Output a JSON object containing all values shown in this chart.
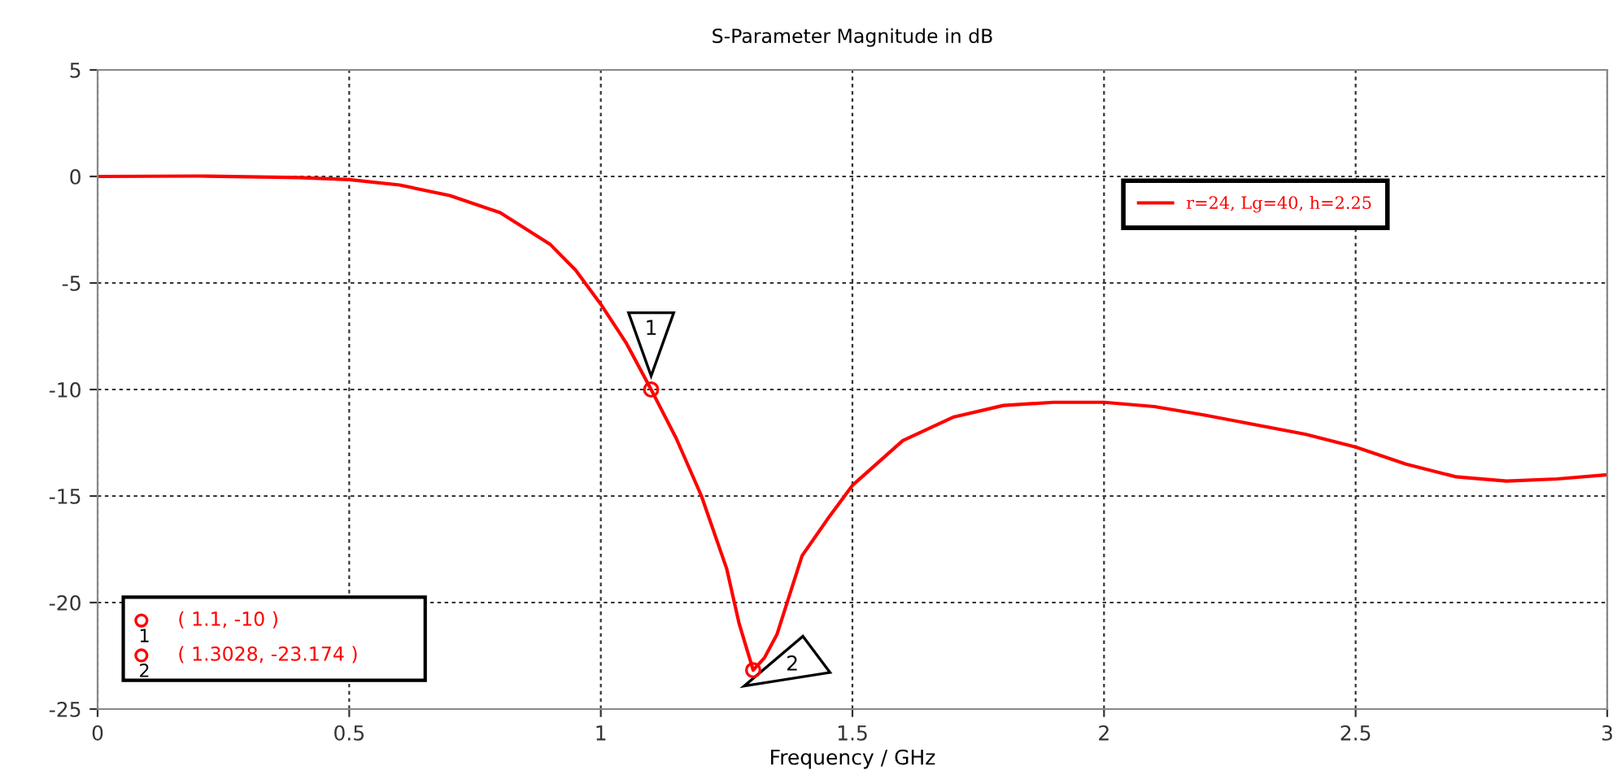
{
  "chart_data": {
    "type": "line",
    "title": "S-Parameter Magnitude in dB",
    "xlabel": "Frequency / GHz",
    "x": [
      0,
      0.2,
      0.4,
      0.5,
      0.6,
      0.7,
      0.8,
      0.9,
      0.95,
      1.0,
      1.05,
      1.1,
      1.15,
      1.2,
      1.25,
      1.275,
      1.3028,
      1.325,
      1.35,
      1.4,
      1.45,
      1.5,
      1.6,
      1.7,
      1.8,
      1.9,
      2.0,
      2.1,
      2.2,
      2.3,
      2.4,
      2.5,
      2.6,
      2.7,
      2.8,
      2.9,
      3.0
    ],
    "series": [
      {
        "name": "r=24, Lg=40, h=2.25",
        "color": "#ff0000",
        "values": [
          0,
          0.02,
          -0.05,
          -0.15,
          -0.4,
          -0.9,
          -1.7,
          -3.2,
          -4.4,
          -6.0,
          -7.8,
          -10,
          -12.3,
          -15.0,
          -18.4,
          -21.0,
          -23.174,
          -22.6,
          -21.5,
          -17.8,
          -16.1,
          -14.5,
          -12.4,
          -11.3,
          -10.75,
          -10.6,
          -10.6,
          -10.8,
          -11.2,
          -11.65,
          -12.1,
          -12.7,
          -13.5,
          -14.1,
          -14.3,
          -14.2,
          -14.0
        ]
      }
    ],
    "annotations": [
      {
        "text": "1",
        "x": 1.1,
        "y": -10
      },
      {
        "text": "2",
        "x": 1.3028,
        "y": -23.174
      },
      "( 1.1, -10 )",
      "( 1.3028, -23.174 )"
    ],
    "xlim": [
      0,
      3
    ],
    "ylim": [
      -25,
      5
    ],
    "xticks": [
      0,
      0.5,
      1,
      1.5,
      2,
      2.5,
      3
    ],
    "yticks": [
      -25,
      -20,
      -15,
      -10,
      -5,
      0,
      5
    ],
    "grid": true,
    "legend": "top right",
    "marker": "none",
    "line_style": "solid"
  }
}
